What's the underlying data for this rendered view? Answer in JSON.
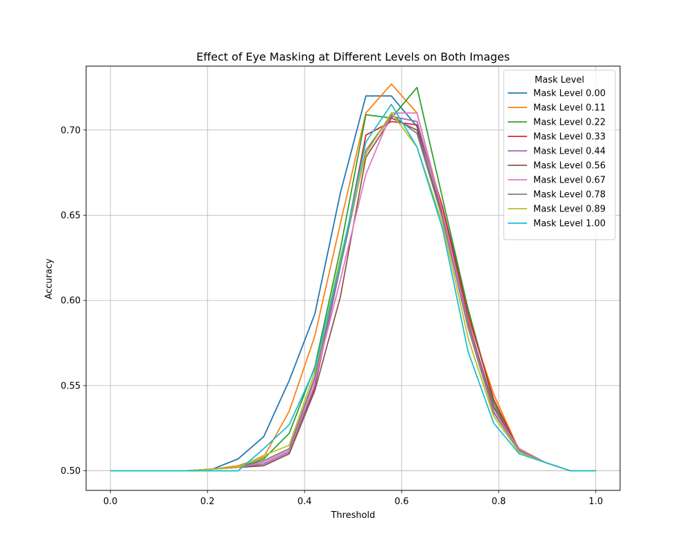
{
  "chart_data": {
    "type": "line",
    "title": "Effect of Eye Masking at Different Levels on Both Images",
    "xlabel": "Threshold",
    "ylabel": "Accuracy",
    "xlim": [
      -0.05,
      1.05
    ],
    "ylim": [
      0.4885,
      0.7375
    ],
    "xticks": [
      0.0,
      0.2,
      0.4,
      0.6,
      0.8,
      1.0
    ],
    "xtick_labels": [
      "0.0",
      "0.2",
      "0.4",
      "0.6",
      "0.8",
      "1.0"
    ],
    "yticks": [
      0.5,
      0.55,
      0.6,
      0.65,
      0.7
    ],
    "ytick_labels": [
      "0.50",
      "0.55",
      "0.60",
      "0.65",
      "0.70"
    ],
    "grid": true,
    "legend": {
      "title": "Mask Level",
      "placement": "top-right"
    },
    "x": [
      0.0,
      0.0526,
      0.1053,
      0.1579,
      0.2105,
      0.2632,
      0.3158,
      0.3684,
      0.4211,
      0.4737,
      0.5263,
      0.5789,
      0.6316,
      0.6842,
      0.7368,
      0.7895,
      0.8421,
      0.8947,
      0.9474,
      1.0
    ],
    "series": [
      {
        "name": "Mask Level 0.00",
        "color": "#1f77b4",
        "values": [
          0.5,
          0.5,
          0.5,
          0.5,
          0.501,
          0.507,
          0.52,
          0.553,
          0.592,
          0.663,
          0.72,
          0.72,
          0.702,
          0.655,
          0.595,
          0.54,
          0.512,
          0.505,
          0.5,
          0.5
        ]
      },
      {
        "name": "Mask Level 0.11",
        "color": "#ff7f0e",
        "values": [
          0.5,
          0.5,
          0.5,
          0.5,
          0.501,
          0.503,
          0.508,
          0.535,
          0.579,
          0.645,
          0.71,
          0.727,
          0.71,
          0.653,
          0.59,
          0.545,
          0.512,
          0.505,
          0.5,
          0.5
        ]
      },
      {
        "name": "Mask Level 0.22",
        "color": "#2ca02c",
        "values": [
          0.5,
          0.5,
          0.5,
          0.5,
          0.501,
          0.502,
          0.507,
          0.522,
          0.561,
          0.63,
          0.709,
          0.707,
          0.725,
          0.66,
          0.595,
          0.54,
          0.512,
          0.505,
          0.5,
          0.5
        ]
      },
      {
        "name": "Mask Level 0.33",
        "color": "#d62728",
        "values": [
          0.5,
          0.5,
          0.5,
          0.5,
          0.501,
          0.502,
          0.503,
          0.51,
          0.549,
          0.62,
          0.697,
          0.705,
          0.703,
          0.655,
          0.592,
          0.542,
          0.512,
          0.505,
          0.5,
          0.5
        ]
      },
      {
        "name": "Mask Level 0.44",
        "color": "#9467bd",
        "values": [
          0.5,
          0.5,
          0.5,
          0.5,
          0.501,
          0.502,
          0.504,
          0.511,
          0.55,
          0.62,
          0.688,
          0.708,
          0.705,
          0.652,
          0.588,
          0.538,
          0.513,
          0.505,
          0.5,
          0.5
        ]
      },
      {
        "name": "Mask Level 0.56",
        "color": "#8c564b",
        "values": [
          0.5,
          0.5,
          0.5,
          0.5,
          0.501,
          0.502,
          0.503,
          0.51,
          0.547,
          0.602,
          0.684,
          0.707,
          0.7,
          0.65,
          0.586,
          0.537,
          0.513,
          0.505,
          0.5,
          0.5
        ]
      },
      {
        "name": "Mask Level 0.67",
        "color": "#e377c2",
        "values": [
          0.5,
          0.5,
          0.5,
          0.5,
          0.501,
          0.502,
          0.505,
          0.512,
          0.553,
          0.612,
          0.674,
          0.71,
          0.71,
          0.652,
          0.585,
          0.535,
          0.513,
          0.505,
          0.5,
          0.5
        ]
      },
      {
        "name": "Mask Level 0.78",
        "color": "#7f7f7f",
        "values": [
          0.5,
          0.5,
          0.5,
          0.5,
          0.501,
          0.502,
          0.506,
          0.513,
          0.555,
          0.62,
          0.688,
          0.709,
          0.698,
          0.648,
          0.584,
          0.534,
          0.512,
          0.505,
          0.5,
          0.5
        ]
      },
      {
        "name": "Mask Level 0.89",
        "color": "#bcbd22",
        "values": [
          0.5,
          0.5,
          0.5,
          0.5,
          0.501,
          0.502,
          0.509,
          0.515,
          0.558,
          0.625,
          0.686,
          0.71,
          0.69,
          0.645,
          0.578,
          0.532,
          0.511,
          0.505,
          0.5,
          0.5
        ]
      },
      {
        "name": "Mask Level 1.00",
        "color": "#17becf",
        "values": [
          0.5,
          0.5,
          0.5,
          0.5,
          0.5,
          0.5,
          0.513,
          0.527,
          0.56,
          0.622,
          0.693,
          0.715,
          0.69,
          0.642,
          0.57,
          0.528,
          0.51,
          0.505,
          0.5,
          0.5
        ]
      }
    ]
  }
}
